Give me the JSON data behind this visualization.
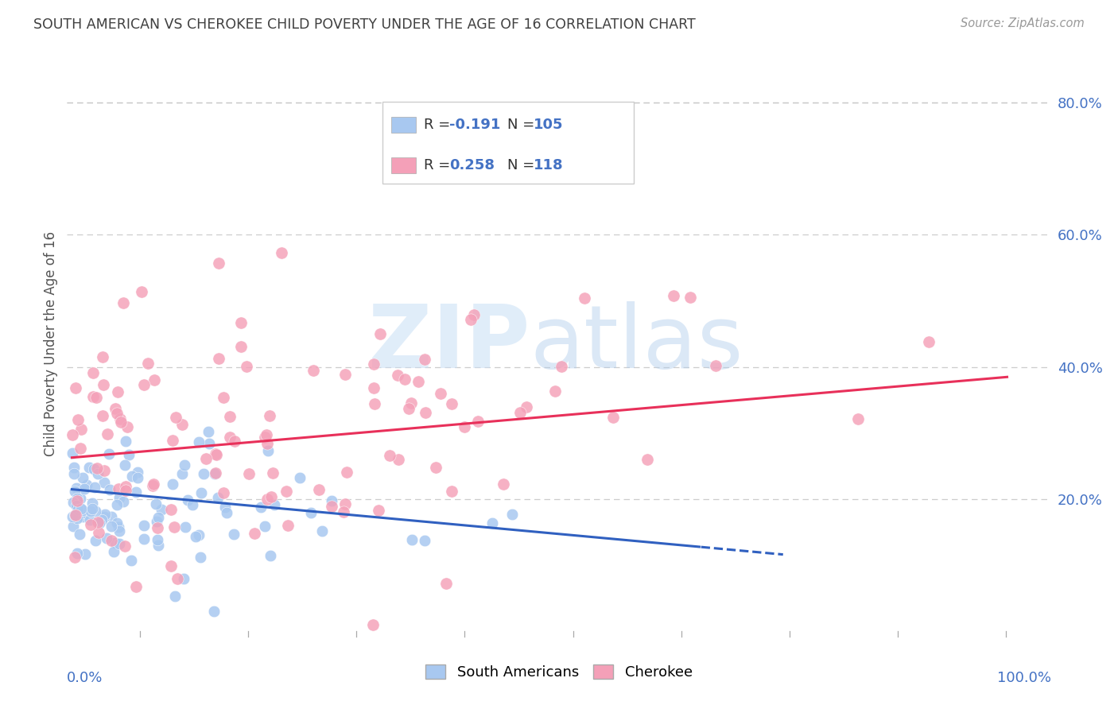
{
  "title": "SOUTH AMERICAN VS CHEROKEE CHILD POVERTY UNDER THE AGE OF 16 CORRELATION CHART",
  "source": "Source: ZipAtlas.com",
  "ylabel": "Child Poverty Under the Age of 16",
  "legend_labels": [
    "South Americans",
    "Cherokee"
  ],
  "blue_R": -0.191,
  "blue_N": 105,
  "pink_R": 0.258,
  "pink_N": 118,
  "blue_color": "#a8c8f0",
  "pink_color": "#f4a0b8",
  "blue_line_color": "#3060c0",
  "pink_line_color": "#e8305a",
  "background_color": "#ffffff",
  "grid_color": "#c8c8c8",
  "title_color": "#404040",
  "axis_label_color": "#4472c4",
  "seed": 99
}
